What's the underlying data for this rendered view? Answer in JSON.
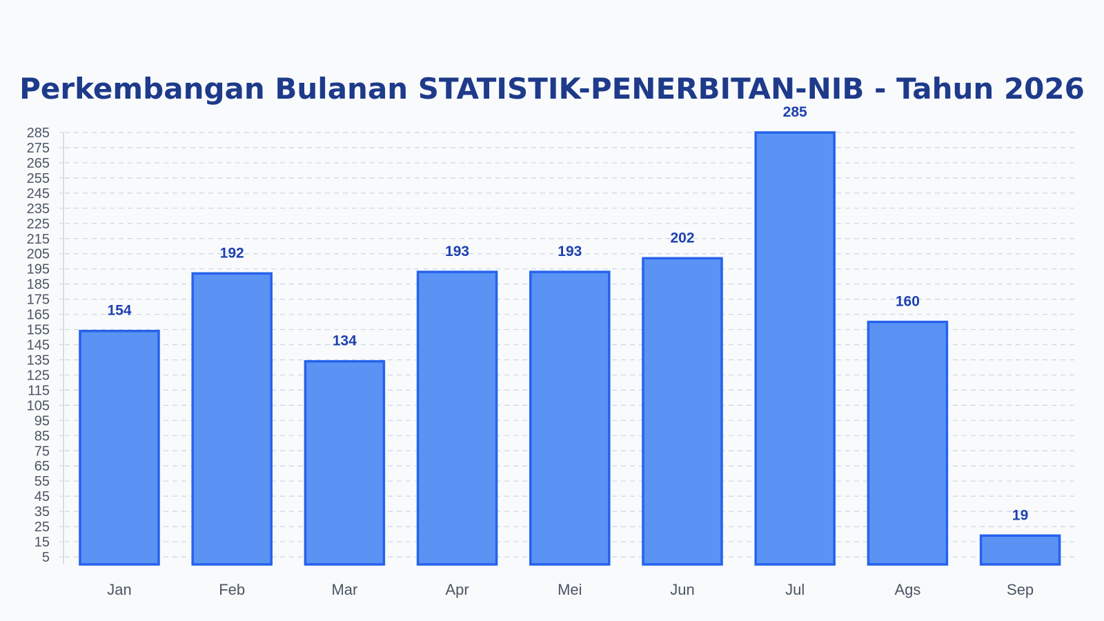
{
  "chart_data": {
    "type": "bar",
    "title": "Perkembangan Bulanan STATISTIK-PENERBITAN-NIB - Tahun 2026",
    "xlabel": "",
    "ylabel": "",
    "categories": [
      "Jan",
      "Feb",
      "Mar",
      "Apr",
      "Mei",
      "Jun",
      "Jul",
      "Ags",
      "Sep"
    ],
    "values": [
      154,
      192,
      134,
      193,
      193,
      202,
      285,
      160,
      19
    ],
    "ylim": [
      0,
      285
    ],
    "yticks": [
      5,
      15,
      25,
      35,
      45,
      55,
      65,
      75,
      85,
      95,
      105,
      115,
      125,
      135,
      145,
      155,
      165,
      175,
      185,
      195,
      205,
      215,
      225,
      235,
      245,
      255,
      265,
      275,
      285
    ],
    "grid": true,
    "legend": "none",
    "data_labels": true
  },
  "colors": {
    "title": "#1e3a8a",
    "bar_fill": "#5b93f5",
    "bar_stroke": "#2563eb",
    "data_label": "#1e40af",
    "gridline": "#cbd5e1",
    "axis": "#cbd5e1",
    "tick_text": "#4b5563",
    "background": "#f8fafc"
  }
}
